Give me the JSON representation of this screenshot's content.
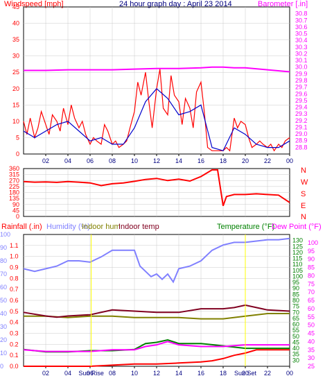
{
  "colors": {
    "background": "#ffffff",
    "axis": "#000000",
    "gridline": "#c8c8c8",
    "windspeed": "#ff0000",
    "windspeed_avg": "#0000cc",
    "barometer": "#ff00ff",
    "wind_direction": "#ff0000",
    "rainfall": "#ff0000",
    "humidity": "#8080ff",
    "indoor_hum": "#808000",
    "indoor_temp": "#800020",
    "temperature": "#008000",
    "dew_point": "#ff00ff",
    "title": "#000080"
  },
  "header": {
    "title": "24 hour graph day : April 23 2014",
    "wind_label": "Windspeed [mph]",
    "baro_label": "Barometer [.in]"
  },
  "direction_labels": [
    "N",
    "W",
    "S",
    "E",
    "N"
  ],
  "lower_labels": {
    "rainfall": "Rainfall (.in)",
    "humidity": "Humidity (%)",
    "indoor_hum": "Indoor hum",
    "indoor_temp": "Indoor temp",
    "temperature": "Temperature (°F)",
    "dew_point": "Dew Point (°F)"
  },
  "x_ticks": [
    "02",
    "04",
    "06",
    "08",
    "10",
    "12",
    "14",
    "16",
    "18",
    "20",
    "22",
    "00"
  ],
  "annotations": [
    {
      "text": "Sun Rise",
      "hour": 6.1
    },
    {
      "text": "Sun Set",
      "hour": 20.0
    }
  ],
  "chart_data": [
    {
      "type": "line",
      "title": "24 hour graph day : April 23 2014",
      "x_unit": "hour",
      "xlim": [
        0,
        24
      ],
      "y_left": {
        "label": "Windspeed [mph]",
        "ylim": [
          0,
          45
        ],
        "ticks": [
          0,
          5,
          10,
          15,
          20,
          25,
          30,
          35,
          40,
          45
        ]
      },
      "y_right": {
        "label": "Barometer [.in]",
        "ylim": [
          28.7,
          30.9
        ],
        "ticks": [
          28.8,
          28.9,
          29.0,
          29.1,
          29.2,
          29.3,
          29.4,
          29.5,
          29.6,
          29.7,
          29.8,
          29.9,
          30.0,
          30.1,
          30.2,
          30.3,
          30.4,
          30.5,
          30.6,
          30.7,
          30.8
        ]
      },
      "series": [
        {
          "name": "Windspeed [mph]",
          "axis": "left",
          "color": "#ff0000",
          "x": [
            0.0,
            0.3,
            0.6,
            1.0,
            1.3,
            1.6,
            2.0,
            2.3,
            2.6,
            3.0,
            3.3,
            3.6,
            4.0,
            4.3,
            4.6,
            5.0,
            5.3,
            5.6,
            6.0,
            6.3,
            6.6,
            7.0,
            7.3,
            7.6,
            8.0,
            8.3,
            8.6,
            9.0,
            9.3,
            9.6,
            10.0,
            10.3,
            10.6,
            11.0,
            11.3,
            11.6,
            12.0,
            12.3,
            12.6,
            13.0,
            13.3,
            13.6,
            14.0,
            14.3,
            14.6,
            15.0,
            15.3,
            15.6,
            16.0,
            16.3,
            16.6,
            17.0,
            17.3,
            17.6,
            18.0,
            18.3,
            18.6,
            19.0,
            19.3,
            19.6,
            20.0,
            20.3,
            20.6,
            21.0,
            21.3,
            21.6,
            22.0,
            22.3,
            22.6,
            23.0,
            23.3,
            23.6,
            24.0
          ],
          "values": [
            10,
            6,
            11,
            5,
            8,
            13,
            9,
            6,
            12,
            10,
            7,
            14,
            9,
            15,
            11,
            8,
            10,
            6,
            3,
            5,
            4,
            3,
            9,
            7,
            3,
            4,
            2,
            3,
            4,
            8,
            13,
            22,
            18,
            25,
            16,
            8,
            20,
            26,
            14,
            12,
            24,
            18,
            16,
            9,
            17,
            14,
            8,
            19,
            22,
            13,
            2,
            1,
            1,
            1,
            1,
            2,
            1,
            11,
            8,
            10,
            9,
            5,
            2,
            3,
            4,
            3,
            2,
            3,
            1,
            3,
            2,
            4,
            5
          ]
        },
        {
          "name": "Windspeed avg",
          "axis": "left",
          "color": "#0000cc",
          "x": [
            0,
            1,
            2,
            3,
            4,
            5,
            6,
            7,
            8,
            9,
            10,
            11,
            12,
            13,
            14,
            15,
            16,
            17,
            18,
            19,
            20,
            21,
            22,
            23,
            24
          ],
          "values": [
            7,
            5,
            7,
            9,
            10,
            7,
            4,
            5,
            3,
            3,
            8,
            16,
            20,
            17,
            12,
            13,
            15,
            2,
            1,
            8,
            6,
            3,
            2,
            2,
            4
          ]
        },
        {
          "name": "Barometer [.in]",
          "axis": "right",
          "color": "#ff00ff",
          "x": [
            0,
            2,
            4,
            6,
            8,
            10,
            12,
            14,
            16,
            17,
            18,
            19,
            20,
            22,
            24
          ],
          "values": [
            29.95,
            29.95,
            29.96,
            29.96,
            29.96,
            29.97,
            29.98,
            29.98,
            29.99,
            30.0,
            30.0,
            29.99,
            29.99,
            29.96,
            29.93
          ]
        }
      ]
    },
    {
      "type": "line",
      "x_unit": "hour",
      "xlim": [
        0,
        24
      ],
      "y_left": {
        "ylim": [
          0,
          360
        ],
        "ticks": [
          0,
          45,
          90,
          135,
          180,
          225,
          270,
          315,
          360
        ]
      },
      "series": [
        {
          "name": "Wind direction",
          "color": "#ff0000",
          "x": [
            0,
            1,
            2,
            3,
            4,
            5,
            6,
            7,
            8,
            9,
            10,
            11,
            12,
            13,
            14,
            15,
            16,
            17,
            17.5,
            18,
            18.3,
            19,
            20,
            21,
            22,
            23,
            24
          ],
          "values": [
            262,
            258,
            260,
            256,
            262,
            258,
            252,
            232,
            246,
            252,
            264,
            278,
            286,
            270,
            280,
            266,
            300,
            350,
            350,
            80,
            150,
            165,
            165,
            170,
            165,
            160,
            105
          ]
        }
      ]
    },
    {
      "type": "line",
      "x_unit": "hour",
      "xlim": [
        0,
        24
      ],
      "y_left_rain": {
        "label": "Rainfall (.in)",
        "ylim": [
          0,
          1.2
        ],
        "ticks": [
          0,
          0.1,
          0.2,
          0.3,
          0.4,
          0.5,
          0.6,
          0.7,
          0.8,
          0.9,
          1.0,
          1.1
        ]
      },
      "y_left_hum": {
        "label": "Humidity (%)",
        "ylim": [
          0,
          100
        ],
        "ticks": [
          0,
          10,
          20,
          30,
          40,
          50,
          60,
          70,
          80,
          90,
          100
        ]
      },
      "y_right_temp": {
        "label": "Temperature (°F)",
        "ylim": [
          25,
          135
        ],
        "ticks": [
          30,
          35,
          40,
          45,
          50,
          55,
          60,
          65,
          70,
          75,
          80,
          85,
          90,
          95,
          100,
          105,
          110,
          115,
          120,
          125,
          130
        ]
      },
      "y_right_dew": {
        "label": "Dew Point (°F)",
        "ylim": [
          25,
          105
        ],
        "ticks": [
          25,
          30,
          35,
          40,
          45,
          50,
          55,
          60,
          65,
          70,
          75,
          80,
          85,
          90,
          95,
          100
        ]
      },
      "series": [
        {
          "name": "Rainfall (.in)",
          "axis": "rain",
          "color": "#ff0000",
          "x": [
            0,
            6,
            8,
            10,
            12,
            14,
            16,
            17,
            18,
            19,
            20,
            21,
            22,
            23,
            24
          ],
          "values": [
            0,
            0,
            0.01,
            0.02,
            0.02,
            0.03,
            0.04,
            0.05,
            0.07,
            0.1,
            0.12,
            0.15,
            0.15,
            0.15,
            0.15
          ]
        },
        {
          "name": "Humidity (%)",
          "axis": "hum",
          "color": "#8080ff",
          "x": [
            0,
            1,
            2,
            3,
            4,
            5,
            6,
            7,
            8,
            9,
            10,
            10.5,
            11,
            11.5,
            12,
            12.5,
            13,
            13.5,
            14,
            15,
            16,
            17,
            18,
            19,
            20,
            21,
            22,
            23,
            24
          ],
          "values": [
            74,
            72,
            74,
            76,
            80,
            80,
            79,
            83,
            88,
            88,
            88,
            76,
            72,
            68,
            70,
            66,
            70,
            64,
            74,
            76,
            80,
            88,
            92,
            94,
            94,
            95,
            96,
            96,
            97
          ]
        },
        {
          "name": "Indoor hum",
          "axis": "hum",
          "color": "#808000",
          "x": [
            0,
            2,
            4,
            6,
            8,
            10,
            12,
            14,
            16,
            18,
            20,
            22,
            24
          ],
          "values": [
            38,
            38,
            37,
            38,
            38,
            37,
            37,
            37,
            36,
            36,
            38,
            40,
            40
          ]
        },
        {
          "name": "Indoor temp",
          "axis": "temp",
          "color": "#800020",
          "x": [
            0,
            2,
            3,
            4,
            6,
            8,
            10,
            12,
            14,
            16,
            18,
            19,
            20,
            22,
            24
          ],
          "values": [
            70,
            67,
            66,
            67,
            68,
            72,
            71,
            70,
            70,
            73,
            73,
            74,
            76,
            72,
            71
          ]
        },
        {
          "name": "Temperature (°F)",
          "axis": "temp",
          "color": "#008000",
          "x": [
            0,
            2,
            4,
            6,
            8,
            10,
            11,
            12,
            13,
            14,
            16,
            17,
            18,
            20,
            22,
            24
          ],
          "values": [
            39,
            37,
            37,
            38,
            38,
            39,
            44,
            45,
            47,
            44,
            44,
            43,
            42,
            40,
            40,
            40
          ]
        },
        {
          "name": "Dew Point (°F)",
          "axis": "dew",
          "color": "#ff00ff",
          "x": [
            0,
            2,
            4,
            6,
            8,
            10,
            11,
            12,
            13,
            14,
            16,
            18,
            20,
            22,
            24
          ],
          "values": [
            35,
            34,
            34,
            34,
            35,
            35,
            37,
            38,
            40,
            38,
            37,
            37,
            38,
            38,
            38
          ]
        }
      ]
    }
  ]
}
